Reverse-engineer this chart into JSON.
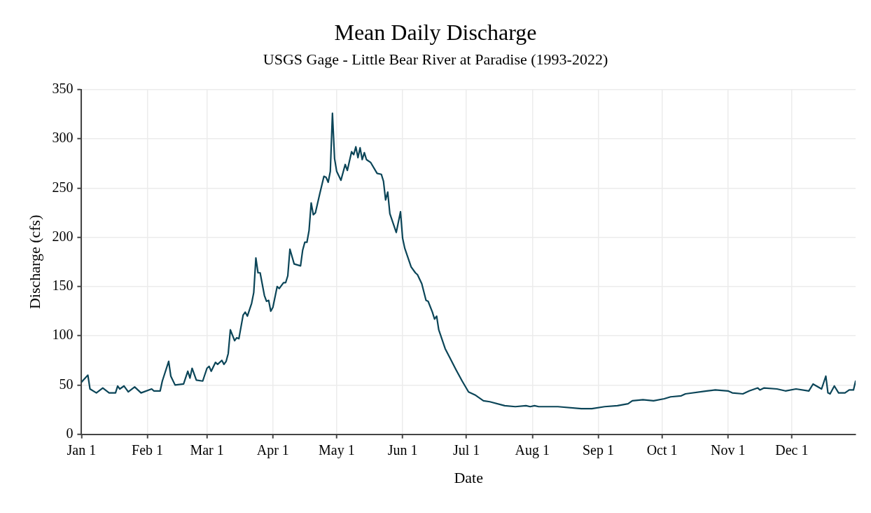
{
  "chart_data": {
    "type": "line",
    "title": "Mean Daily Discharge",
    "subtitle": "USGS Gage - Little Bear River at Paradise (1993-2022)",
    "xlabel": "Date",
    "ylabel": "Discharge (cfs)",
    "xlim": [
      "--01-01",
      "--12-31"
    ],
    "xticks": [
      {
        "value": "--01-01",
        "label": "Jan 1"
      },
      {
        "value": "--02-01",
        "label": "Feb 1"
      },
      {
        "value": "--03-01",
        "label": "Mar 1"
      },
      {
        "value": "--04-01",
        "label": "Apr 1"
      },
      {
        "value": "--05-01",
        "label": "May 1"
      },
      {
        "value": "--06-01",
        "label": "Jun 1"
      },
      {
        "value": "--07-01",
        "label": "Jul 1"
      },
      {
        "value": "--08-01",
        "label": "Aug 1"
      },
      {
        "value": "--09-01",
        "label": "Sep 1"
      },
      {
        "value": "--10-01",
        "label": "Oct 1"
      },
      {
        "value": "--11-01",
        "label": "Nov 1"
      },
      {
        "value": "--12-01",
        "label": "Dec 1"
      }
    ],
    "ylim": [
      0,
      350
    ],
    "yticks": [
      0,
      50,
      100,
      150,
      200,
      250,
      300,
      350
    ],
    "grid": true,
    "marker": "none",
    "line_style": "solid",
    "x": [
      "--01-01",
      "--01-04",
      "--01-05",
      "--01-08",
      "--01-11",
      "--01-14",
      "--01-17",
      "--01-18",
      "--01-19",
      "--01-21",
      "--01-23",
      "--01-26",
      "--01-29",
      "--02-03",
      "--02-04",
      "--02-07",
      "--02-08",
      "--02-11",
      "--02-12",
      "--02-14",
      "--02-18",
      "--02-20",
      "--02-21",
      "--02-22",
      "--02-24",
      "--02-27",
      "--03-01",
      "--03-02",
      "--03-03",
      "--03-05",
      "--03-06",
      "--03-08",
      "--03-09",
      "--03-10",
      "--03-11",
      "--03-12",
      "--03-14",
      "--03-15",
      "--03-16",
      "--03-18",
      "--03-19",
      "--03-20",
      "--03-22",
      "--03-23",
      "--03-24",
      "--03-25",
      "--03-26",
      "--03-28",
      "--03-29",
      "--03-30",
      "--03-31",
      "--04-01",
      "--04-03",
      "--04-04",
      "--04-06",
      "--04-07",
      "--04-08",
      "--04-09",
      "--04-11",
      "--04-14",
      "--04-15",
      "--04-16",
      "--04-17",
      "--04-18",
      "--04-19",
      "--04-20",
      "--04-21",
      "--04-23",
      "--04-25",
      "--04-26",
      "--04-27",
      "--04-28",
      "--04-29",
      "--04-30",
      "--05-01",
      "--05-03",
      "--05-05",
      "--05-06",
      "--05-08",
      "--05-09",
      "--05-10",
      "--05-11",
      "--05-12",
      "--05-13",
      "--05-14",
      "--05-15",
      "--05-17",
      "--05-20",
      "--05-22",
      "--05-23",
      "--05-24",
      "--05-25",
      "--05-26",
      "--05-29",
      "--05-31",
      "--06-01",
      "--06-02",
      "--06-05",
      "--06-07",
      "--06-08",
      "--06-10",
      "--06-12",
      "--06-13",
      "--06-15",
      "--06-16",
      "--06-17",
      "--06-18",
      "--06-21",
      "--06-26",
      "--06-29",
      "--07-02",
      "--07-05",
      "--07-09",
      "--07-12",
      "--07-19",
      "--07-24",
      "--07-29",
      "--07-31",
      "--08-02",
      "--08-04",
      "--08-13",
      "--08-24",
      "--08-29",
      "--09-04",
      "--09-10",
      "--09-15",
      "--09-17",
      "--09-22",
      "--09-27",
      "--10-02",
      "--10-05",
      "--10-10",
      "--10-12",
      "--10-22",
      "--10-26",
      "--11-01",
      "--11-03",
      "--11-08",
      "--11-11",
      "--11-15",
      "--11-16",
      "--11-18",
      "--11-24",
      "--11-28",
      "--12-03",
      "--12-09",
      "--12-11",
      "--12-15",
      "--12-17",
      "--12-18",
      "--12-19",
      "--12-21",
      "--12-23",
      "--12-26",
      "--12-28",
      "--12-30",
      "--12-31"
    ],
    "series": [
      {
        "color": "#0b4558",
        "values": [
          53,
          60,
          46,
          42,
          47,
          42,
          42,
          49,
          46,
          49,
          43,
          48,
          42,
          46,
          44,
          44,
          54,
          74,
          59,
          50,
          51,
          64,
          57,
          67,
          55,
          54,
          67,
          69,
          64,
          73,
          71,
          75,
          71,
          74,
          82,
          106,
          95,
          98,
          97,
          121,
          124,
          120,
          133,
          144,
          179,
          164,
          164,
          141,
          135,
          136,
          125,
          129,
          150,
          148,
          154,
          154,
          161,
          188,
          173,
          171,
          187,
          195,
          195,
          207,
          235,
          223,
          225,
          244,
          262,
          261,
          256,
          267,
          326,
          280,
          267,
          258,
          274,
          268,
          287,
          284,
          292,
          281,
          291,
          279,
          286,
          279,
          276,
          265,
          264,
          257,
          238,
          246,
          224,
          205,
          226,
          199,
          189,
          170,
          164,
          162,
          153,
          136,
          135,
          124,
          117,
          120,
          106,
          87,
          66,
          54,
          43,
          40,
          34,
          33,
          29,
          28,
          29,
          28,
          29,
          28,
          28,
          26,
          26,
          28,
          29,
          31,
          34,
          35,
          34,
          36,
          38,
          39,
          41,
          44,
          45,
          44,
          42,
          41,
          44,
          47,
          45,
          47,
          46,
          44,
          46,
          44,
          51,
          46,
          59,
          42,
          41,
          49,
          42,
          42,
          45,
          45,
          54
        ]
      }
    ]
  }
}
